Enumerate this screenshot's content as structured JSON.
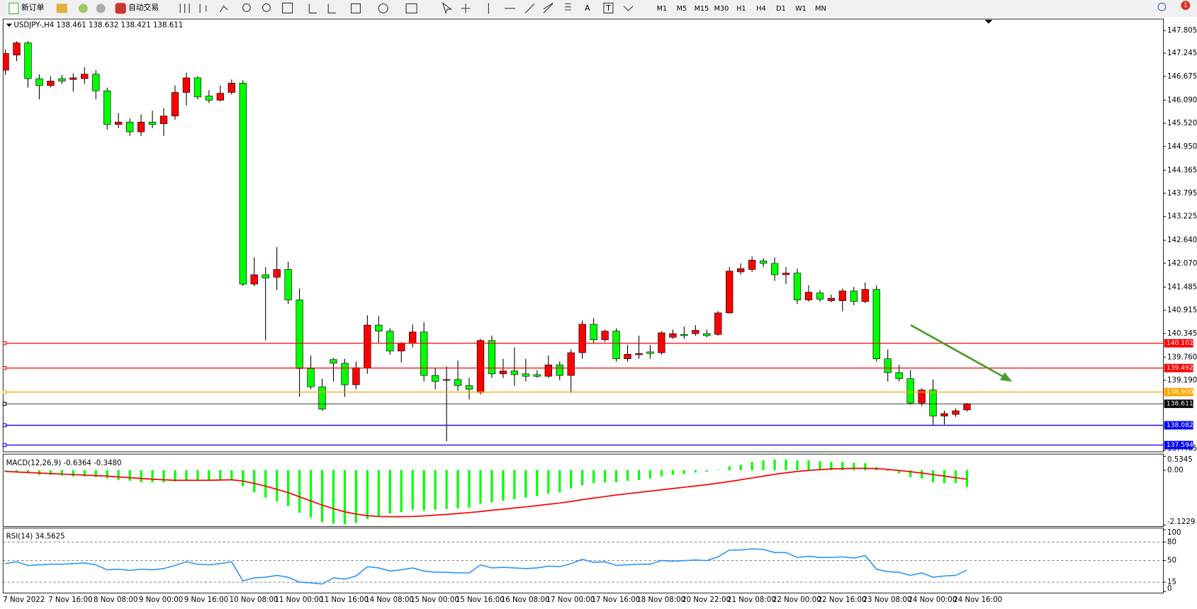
{
  "toolbar": {
    "new_order": "新订单",
    "auto_trading": "自动交易",
    "text_tool": "A",
    "label_tool": "T",
    "timeframes": [
      "M1",
      "M5",
      "M15",
      "M30",
      "H1",
      "H4",
      "D1",
      "W1",
      "MN"
    ],
    "notifications": "1"
  },
  "chart_data": [
    {
      "type": "candlestick",
      "title": "USDJPY-,H4  138.461 138.632 138.421 138.611",
      "up_color": "#ff0000",
      "down_color": "#00ff00",
      "categories": [
        "7 Nov 2022",
        null,
        null,
        null,
        "7 Nov 16:00",
        null,
        null,
        null,
        "8 Nov 08:00",
        null,
        null,
        null,
        "9 Nov 00:00",
        null,
        null,
        null,
        "9 Nov 16:00",
        null,
        null,
        null,
        "10 Nov 08:00",
        null,
        null,
        null,
        "11 Nov 00:00",
        null,
        null,
        null,
        "11 Nov 16:00",
        null,
        null,
        null,
        "14 Nov 08:00",
        null,
        null,
        null,
        "15 Nov 00:00",
        null,
        null,
        null,
        "15 Nov 16:00",
        null,
        null,
        null,
        "16 Nov 08:00",
        null,
        null,
        null,
        "17 Nov 00:00",
        null,
        null,
        null,
        "17 Nov 16:00",
        null,
        null,
        null,
        "18 Nov 08:00",
        null,
        null,
        null,
        "20 Nov 22:00",
        null,
        null,
        null,
        "21 Nov 08:00",
        null,
        null,
        null,
        "22 Nov 00:00",
        null,
        null,
        null,
        "22 Nov 16:00",
        null,
        null,
        null,
        "23 Nov 08:00",
        null,
        null,
        null,
        "24 Nov 00:00",
        null,
        null,
        null,
        "24 Nov 16:00",
        null
      ],
      "open": [
        146.83,
        147.2,
        147.5,
        146.62,
        146.45,
        146.62,
        146.6,
        146.62,
        146.73,
        146.32,
        145.49,
        145.55,
        145.31,
        145.55,
        145.51,
        145.7,
        146.28,
        146.64,
        146.19,
        146.09,
        146.28,
        146.51,
        141.56,
        141.79,
        141.73,
        141.92,
        141.17,
        139.48,
        139.03,
        139.7,
        139.61,
        139.08,
        139.5,
        140.55,
        140.4,
        139.91,
        140.1,
        140.38,
        139.31,
        139.19,
        139.21,
        139.06,
        138.89,
        140.17,
        139.35,
        139.42,
        139.35,
        139.33,
        139.29,
        139.57,
        139.31,
        139.87,
        140.57,
        140.19,
        140.4,
        139.72,
        139.82,
        139.89,
        139.87,
        140.25,
        140.32,
        140.34,
        140.34,
        140.32,
        140.85,
        141.86,
        141.92,
        142.13,
        142.07,
        141.79,
        141.83,
        141.17,
        141.34,
        141.15,
        141.15,
        141.39,
        141.13,
        141.43,
        139.72,
        139.38,
        139.23,
        138.63,
        138.95,
        138.31,
        138.35,
        138.461
      ],
      "high": [
        147.34,
        147.54,
        147.54,
        146.73,
        146.68,
        146.71,
        146.75,
        146.9,
        146.83,
        146.4,
        145.77,
        145.64,
        145.74,
        145.83,
        145.89,
        146.45,
        146.77,
        146.68,
        146.34,
        146.45,
        146.6,
        146.58,
        142.22,
        141.98,
        142.47,
        142.11,
        141.45,
        139.8,
        139.23,
        139.74,
        139.72,
        139.65,
        140.79,
        140.77,
        140.47,
        140.13,
        140.57,
        140.62,
        139.5,
        139.53,
        139.68,
        139.25,
        140.21,
        140.29,
        139.72,
        140.0,
        139.72,
        139.44,
        139.8,
        139.66,
        139.95,
        140.66,
        140.72,
        140.44,
        140.47,
        140.06,
        140.29,
        140.06,
        140.4,
        140.44,
        140.51,
        140.55,
        140.44,
        140.89,
        141.98,
        142.07,
        142.24,
        142.2,
        142.22,
        141.98,
        141.94,
        141.53,
        141.41,
        141.3,
        141.45,
        141.49,
        141.6,
        141.53,
        139.95,
        139.57,
        139.44,
        138.99,
        139.21,
        138.44,
        138.5,
        138.632
      ],
      "low": [
        146.71,
        147.05,
        146.4,
        146.11,
        146.4,
        146.49,
        146.3,
        146.49,
        146.11,
        145.36,
        145.4,
        145.21,
        145.21,
        145.4,
        145.21,
        145.61,
        145.96,
        146.11,
        146.02,
        146.06,
        146.23,
        141.51,
        141.51,
        140.17,
        141.41,
        141.07,
        138.78,
        138.97,
        138.44,
        139.16,
        138.78,
        138.97,
        139.35,
        140.1,
        139.82,
        139.63,
        140.0,
        139.16,
        138.97,
        137.69,
        138.93,
        138.72,
        138.84,
        139.25,
        139.25,
        139.06,
        139.16,
        139.25,
        139.25,
        139.19,
        138.88,
        139.72,
        140.1,
        140.13,
        139.65,
        139.65,
        139.72,
        139.72,
        139.82,
        140.21,
        140.21,
        140.29,
        140.25,
        140.29,
        140.83,
        141.79,
        141.86,
        141.98,
        141.64,
        141.56,
        141.07,
        141.13,
        141.13,
        141.11,
        140.89,
        141.04,
        141.09,
        139.65,
        139.16,
        139.16,
        138.59,
        138.56,
        138.07,
        138.1,
        138.29,
        138.421
      ],
      "close": [
        147.24,
        147.5,
        146.62,
        146.45,
        146.56,
        146.56,
        146.64,
        146.73,
        146.32,
        145.49,
        145.55,
        145.31,
        145.55,
        145.49,
        145.7,
        146.28,
        146.64,
        146.17,
        146.09,
        146.26,
        146.51,
        141.56,
        141.79,
        141.71,
        141.92,
        141.17,
        139.48,
        139.03,
        138.48,
        139.61,
        139.08,
        139.5,
        140.55,
        140.4,
        139.91,
        140.1,
        140.38,
        139.31,
        139.16,
        139.21,
        139.06,
        138.97,
        140.17,
        139.35,
        139.42,
        139.33,
        139.29,
        139.29,
        139.57,
        139.31,
        139.87,
        140.57,
        140.19,
        140.4,
        139.72,
        139.83,
        139.85,
        139.85,
        140.36,
        140.34,
        140.29,
        140.42,
        140.29,
        140.85,
        141.88,
        141.94,
        142.15,
        142.07,
        141.79,
        141.83,
        141.17,
        141.36,
        141.19,
        141.21,
        141.39,
        141.13,
        141.43,
        139.72,
        139.38,
        139.23,
        138.63,
        138.95,
        138.31,
        138.37,
        138.44,
        138.611
      ],
      "ylim": [
        137.429,
        148.087
      ],
      "yticks": [
        147.805,
        147.245,
        146.675,
        {
          "value": 146.09,
          "label": "146.090"
        },
        {
          "value": 145.52,
          "label": "145.520"
        },
        {
          "value": 144.95,
          "label": "144.950"
        },
        144.365,
        143.795,
        143.225,
        {
          "value": 142.64,
          "label": "142.640"
        },
        {
          "value": 142.07,
          "label": "142.070"
        },
        141.485,
        140.915,
        140.345,
        {
          "value": 139.76,
          "label": "139.760"
        },
        {
          "value": 139.19,
          "label": "139.190"
        },
        137.465
      ],
      "levels": [
        {
          "value": 140.102,
          "color": "#ff0000"
        },
        {
          "value": 139.492,
          "color": "#ff0000"
        },
        {
          "value": 138.9,
          "label": "138.900",
          "color": "#ffa500"
        },
        {
          "value": 138.611,
          "color": "#000000"
        },
        {
          "value": 138.082,
          "color": "#0000ff"
        },
        {
          "value": 137.594,
          "color": "#0000ff"
        }
      ]
    },
    {
      "type": "macd",
      "title": "MACD(12,26,9) -0.6364 -0.3480",
      "ylim": [
        -2.1229,
        0.5345
      ],
      "yticks": [
        0.5345,
        {
          "value": 0,
          "label": "0.00"
        },
        -2.1229
      ],
      "histogram": {
        "color": "#00ff00",
        "values": [
          -0.06,
          -0.09,
          -0.12,
          -0.18,
          -0.18,
          -0.21,
          -0.24,
          -0.24,
          -0.27,
          -0.32,
          -0.38,
          -0.41,
          -0.47,
          -0.47,
          -0.47,
          -0.44,
          -0.38,
          -0.38,
          -0.38,
          -0.38,
          -0.35,
          -0.62,
          -0.86,
          -1.06,
          -1.21,
          -1.39,
          -1.65,
          -1.83,
          -2.01,
          -2.07,
          -2.09,
          -2.04,
          -1.89,
          -1.77,
          -1.68,
          -1.62,
          -1.53,
          -1.56,
          -1.53,
          -1.5,
          -1.48,
          -1.45,
          -1.3,
          -1.24,
          -1.18,
          -1.12,
          -1.06,
          -1,
          -0.91,
          -0.86,
          -0.71,
          -0.59,
          -0.5,
          -0.47,
          -0.47,
          -0.41,
          -0.38,
          -0.32,
          -0.24,
          -0.18,
          -0.15,
          -0.09,
          -0.06,
          0.02,
          0.15,
          0.21,
          0.32,
          0.38,
          0.41,
          0.41,
          0.38,
          0.38,
          0.35,
          0.32,
          0.32,
          0.29,
          0.27,
          0.12,
          -0.03,
          -0.12,
          -0.27,
          -0.32,
          -0.47,
          -0.5,
          -0.5,
          -0.6364
        ]
      },
      "signal": {
        "color": "#ff0000",
        "values": [
          -0.05,
          -0.07,
          -0.09,
          -0.11,
          -0.13,
          -0.15,
          -0.17,
          -0.19,
          -0.21,
          -0.23,
          -0.26,
          -0.29,
          -0.32,
          -0.35,
          -0.37,
          -0.39,
          -0.39,
          -0.39,
          -0.39,
          -0.38,
          -0.37,
          -0.42,
          -0.51,
          -0.62,
          -0.74,
          -0.87,
          -1.03,
          -1.19,
          -1.35,
          -1.49,
          -1.61,
          -1.7,
          -1.76,
          -1.79,
          -1.8,
          -1.8,
          -1.79,
          -1.77,
          -1.74,
          -1.71,
          -1.68,
          -1.64,
          -1.6,
          -1.55,
          -1.51,
          -1.46,
          -1.42,
          -1.37,
          -1.32,
          -1.27,
          -1.21,
          -1.14,
          -1.08,
          -1.02,
          -0.96,
          -0.91,
          -0.86,
          -0.81,
          -0.76,
          -0.71,
          -0.66,
          -0.61,
          -0.56,
          -0.5,
          -0.44,
          -0.37,
          -0.3,
          -0.23,
          -0.16,
          -0.1,
          -0.05,
          -0.01,
          0.02,
          0.05,
          0.06,
          0.07,
          0.07,
          0.06,
          0.03,
          -0.01,
          -0.06,
          -0.11,
          -0.17,
          -0.23,
          -0.29,
          -0.348
        ]
      }
    },
    {
      "type": "rsi",
      "title": "RSI(14) 34.5625",
      "color": "#1e90ff",
      "ylim": [
        0,
        100
      ],
      "yticks": [
        100,
        80,
        50,
        15,
        0
      ],
      "values": [
        45,
        48,
        42,
        43,
        44,
        44,
        45,
        46,
        43,
        35,
        36,
        34,
        36,
        35,
        37,
        42,
        48,
        44,
        43,
        45,
        48,
        17,
        22,
        23,
        26,
        23,
        15,
        14,
        12,
        22,
        20,
        25,
        40,
        38,
        33,
        35,
        38,
        33,
        31,
        31,
        30,
        30,
        43,
        38,
        39,
        38,
        37,
        38,
        41,
        40,
        45,
        52,
        47,
        48,
        42,
        43,
        44,
        44,
        50,
        49,
        50,
        51,
        50,
        56,
        67,
        67,
        69,
        68,
        63,
        63,
        55,
        57,
        55,
        55,
        56,
        54,
        58,
        36,
        32,
        31,
        26,
        30,
        23,
        25,
        26,
        34.5625
      ]
    }
  ]
}
